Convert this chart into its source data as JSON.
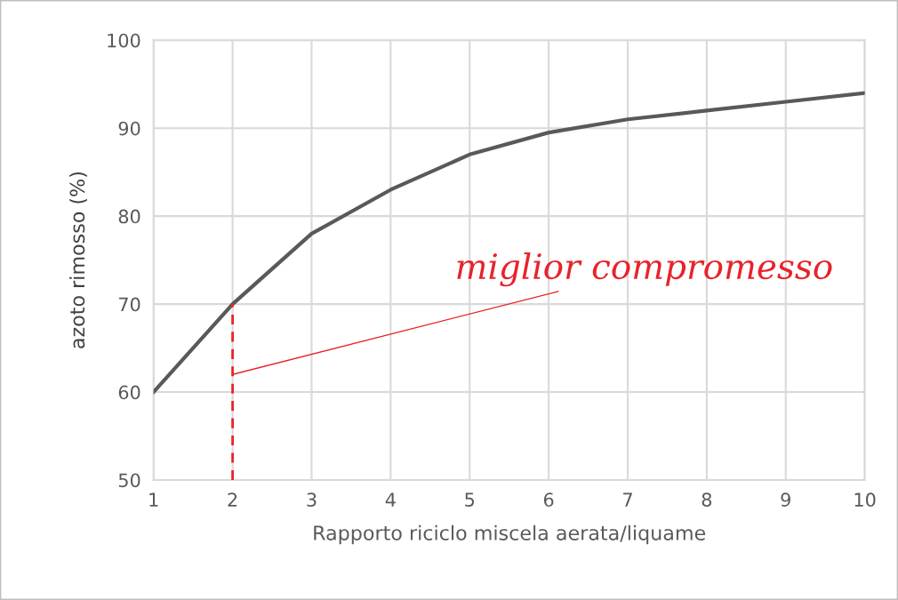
{
  "chart_data": {
    "type": "line",
    "xlabel": "Rapporto riciclo miscela aerata/liquame",
    "ylabel": "azoto rimosso (%)",
    "xlim": [
      1,
      10
    ],
    "xticks": [
      1,
      2,
      3,
      4,
      5,
      6,
      7,
      8,
      9,
      10
    ],
    "ylim": [
      50,
      100
    ],
    "yticks": [
      50,
      60,
      70,
      80,
      90,
      100
    ],
    "grid": true,
    "marker": "none",
    "series": [
      {
        "color": "#595959",
        "x": [
          1,
          2,
          3,
          4,
          5,
          6,
          7,
          8,
          9,
          10
        ],
        "values": [
          60,
          70,
          78,
          83,
          87,
          89.5,
          91,
          92,
          93,
          94
        ],
        "line_style": "solid"
      },
      {
        "color": "#e8232a",
        "x": [
          2,
          2
        ],
        "values": [
          50,
          70
        ],
        "line_style": "dashed"
      }
    ],
    "annotations": [
      {
        "text": "miglior compromesso",
        "x": 2,
        "y": 62
      }
    ]
  }
}
